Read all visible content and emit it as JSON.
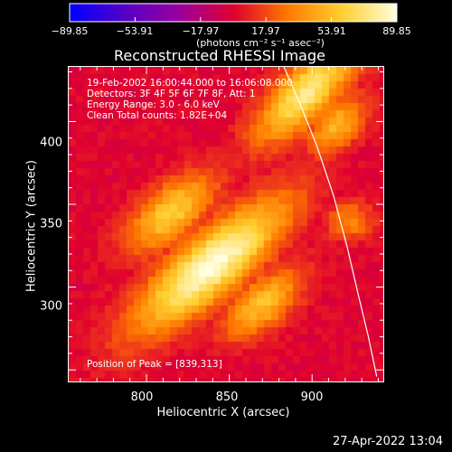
{
  "colorbar": {
    "tick_labels": [
      "−89.85",
      "−53.91",
      "−17.97",
      "17.97",
      "53.91",
      "89.85"
    ],
    "tick_values": [
      -89.85,
      -53.91,
      -17.97,
      17.97,
      53.91,
      89.85
    ],
    "range": [
      -89.85,
      89.85
    ],
    "units": "(photons cm⁻² s⁻¹ asec⁻²)",
    "colormap": [
      "#0000ff",
      "#5500c8",
      "#9a00a0",
      "#e00030",
      "#ff7a00",
      "#ffd030",
      "#ffffe0"
    ]
  },
  "title": "Reconstructed RHESSI Image",
  "info": {
    "line1": "19-Feb-2002 16:00:44.000 to 16:06:08.000",
    "line2": "Detectors: 3F 4F 5F 6F 7F 8F, Att: 1",
    "line3": "Energy Range: 3.0 - 6.0 keV",
    "line4": "Clean    Total counts: 1.82E+04"
  },
  "peak_label": "Position of Peak = [839,313]",
  "xlabel": "Heliocentric X (arcsec)",
  "ylabel": "Heliocentric Y (arcsec)",
  "timestamp": "27-Apr-2022 13:04",
  "chart_data": {
    "type": "heatmap",
    "title": "Reconstructed RHESSI Image",
    "xlabel": "Heliocentric X (arcsec)",
    "ylabel": "Heliocentric Y (arcsec)",
    "xlim": [
      753,
      943
    ],
    "ylim": [
      243,
      433
    ],
    "xticks": [
      800,
      850,
      900
    ],
    "yticks": [
      300,
      350,
      400
    ],
    "xtick_labels": [
      "800",
      "850",
      "900"
    ],
    "ytick_labels": [
      "300",
      "350",
      "400"
    ],
    "zlim": [
      -89.85,
      89.85
    ],
    "peak": [
      839,
      313
    ],
    "sources": [
      {
        "x": 839,
        "y": 313,
        "peak": 89.85,
        "sigma_major": 40,
        "sigma_minor": 13,
        "angle_deg": -40
      },
      {
        "x": 815,
        "y": 345,
        "peak": 60,
        "sigma_major": 22,
        "sigma_minor": 11,
        "angle_deg": -40
      },
      {
        "x": 870,
        "y": 290,
        "peak": 55,
        "sigma_major": 20,
        "sigma_minor": 10,
        "angle_deg": -40
      },
      {
        "x": 897,
        "y": 418,
        "peak": 75,
        "sigma_major": 28,
        "sigma_minor": 11,
        "angle_deg": -45
      },
      {
        "x": 915,
        "y": 398,
        "peak": 50,
        "sigma_major": 15,
        "sigma_minor": 9,
        "angle_deg": -45
      },
      {
        "x": 923,
        "y": 340,
        "peak": 35,
        "sigma_major": 10,
        "sigma_minor": 8,
        "angle_deg": 0
      }
    ],
    "background": -25,
    "limb_curve": {
      "x": [
        883,
        893,
        903,
        913,
        921,
        928,
        934,
        939
      ],
      "y": [
        433,
        410,
        385,
        355,
        325,
        295,
        270,
        246
      ]
    }
  }
}
